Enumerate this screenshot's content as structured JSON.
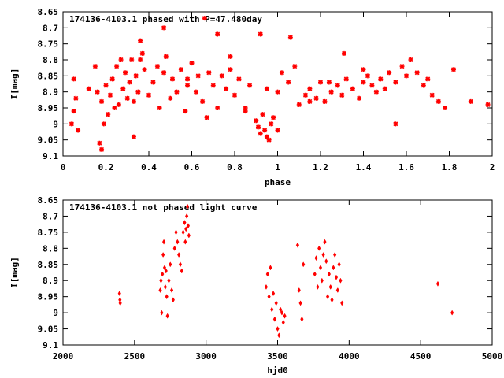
{
  "chart_data": [
    {
      "type": "scatter",
      "title": "174136-4103.1 phased with P=47.480day",
      "xlabel": "phase",
      "ylabel": "I[mag]",
      "xlim": [
        0,
        2
      ],
      "ylim": [
        9.1,
        8.65
      ],
      "y_inverted": true,
      "grid": false,
      "point_color": "#ff0000",
      "marker": "star",
      "x_ticks": [
        "0",
        "0.2",
        "0.4",
        "0.6",
        "0.8",
        "1",
        "1.2",
        "1.4",
        "1.6",
        "1.8",
        "2"
      ],
      "y_ticks": [
        "8.65",
        "8.7",
        "8.75",
        "8.8",
        "8.85",
        "8.9",
        "8.95",
        "9",
        "9.05",
        "9.1"
      ],
      "x": [
        0.04,
        0.05,
        0.06,
        0.05,
        0.07,
        0.12,
        0.15,
        0.16,
        0.17,
        0.18,
        0.19,
        0.2,
        0.21,
        0.22,
        0.23,
        0.24,
        0.25,
        0.26,
        0.27,
        0.28,
        0.29,
        0.3,
        0.31,
        0.32,
        0.33,
        0.34,
        0.35,
        0.36,
        0.37,
        0.38,
        0.4,
        0.42,
        0.44,
        0.45,
        0.47,
        0.48,
        0.5,
        0.51,
        0.53,
        0.55,
        0.57,
        0.58,
        0.6,
        0.62,
        0.63,
        0.65,
        0.67,
        0.68,
        0.7,
        0.72,
        0.74,
        0.76,
        0.78,
        0.8,
        0.82,
        0.85,
        0.87,
        0.9,
        0.91,
        0.92,
        0.93,
        0.94,
        0.95,
        0.96,
        0.97,
        0.98,
        1.0,
        1.02,
        1.05,
        1.08,
        1.1,
        1.13,
        1.15,
        1.18,
        1.2,
        1.22,
        1.25,
        1.28,
        1.3,
        1.32,
        1.35,
        1.38,
        1.4,
        1.42,
        1.44,
        1.46,
        1.48,
        1.5,
        1.52,
        1.55,
        1.58,
        1.6,
        1.62,
        1.65,
        1.68,
        1.7,
        1.72,
        1.75,
        1.78,
        1.82,
        1.9,
        1.98,
        0.36,
        0.47,
        0.66,
        0.92,
        0.72,
        1.06,
        0.78,
        1.31,
        0.18,
        0.33,
        0.58,
        0.85,
        0.95,
        1.0,
        1.15,
        1.24,
        1.4,
        1.55
      ],
      "y": [
        9.0,
        8.96,
        8.92,
        8.86,
        9.02,
        8.89,
        8.82,
        8.9,
        9.06,
        8.93,
        9.0,
        8.88,
        8.97,
        8.91,
        8.86,
        8.95,
        8.82,
        8.94,
        8.8,
        8.89,
        8.84,
        8.92,
        8.87,
        8.8,
        8.93,
        8.85,
        8.9,
        8.74,
        8.78,
        8.83,
        8.91,
        8.87,
        8.82,
        8.95,
        8.84,
        8.79,
        8.92,
        8.86,
        8.9,
        8.83,
        8.96,
        8.88,
        8.81,
        8.9,
        8.85,
        8.93,
        8.98,
        8.84,
        8.88,
        8.95,
        8.85,
        8.89,
        8.83,
        8.91,
        8.86,
        8.95,
        8.88,
        8.99,
        9.01,
        9.03,
        8.97,
        9.02,
        9.04,
        9.05,
        9.0,
        8.98,
        8.9,
        8.84,
        8.87,
        8.82,
        8.94,
        8.91,
        8.89,
        8.92,
        8.87,
        8.93,
        8.9,
        8.88,
        8.91,
        8.86,
        8.89,
        8.92,
        8.87,
        8.85,
        8.88,
        8.9,
        8.86,
        8.89,
        8.84,
        8.87,
        8.82,
        8.85,
        8.8,
        8.84,
        8.88,
        8.86,
        8.91,
        8.93,
        8.95,
        8.83,
        8.93,
        8.94,
        8.8,
        8.7,
        8.67,
        8.72,
        8.72,
        8.73,
        8.79,
        8.78,
        9.08,
        9.04,
        8.86,
        8.96,
        8.89,
        9.02,
        8.93,
        8.87,
        8.83,
        9.0
      ],
      "annotations": [],
      "legend": "none"
    },
    {
      "type": "scatter",
      "title": "174136-4103.1 not phased light curve",
      "xlabel": "hjd0",
      "ylabel": "I[mag]",
      "xlim": [
        2000,
        5000
      ],
      "ylim": [
        9.1,
        8.65
      ],
      "y_inverted": true,
      "grid": false,
      "point_color": "#ff0000",
      "marker": "diamond",
      "x_ticks": [
        "2000",
        "2500",
        "3000",
        "3500",
        "4000",
        "4500",
        "5000"
      ],
      "y_ticks": [
        "8.65",
        "8.7",
        "8.75",
        "8.8",
        "8.85",
        "8.9",
        "8.95",
        "9",
        "9.05",
        "9.1"
      ],
      "x": [
        2395,
        2398,
        2400,
        2680,
        2685,
        2690,
        2695,
        2700,
        2705,
        2710,
        2715,
        2720,
        2725,
        2730,
        2740,
        2750,
        2760,
        2770,
        2780,
        2790,
        2800,
        2810,
        2820,
        2830,
        2840,
        2850,
        2855,
        2860,
        2865,
        2870,
        2875,
        2880,
        3420,
        3430,
        3440,
        3450,
        3460,
        3470,
        3480,
        3490,
        3500,
        3510,
        3520,
        3530,
        3540,
        3550,
        3640,
        3650,
        3660,
        3670,
        3680,
        3760,
        3770,
        3780,
        3790,
        3800,
        3810,
        3820,
        3830,
        3840,
        3850,
        3860,
        3870,
        3880,
        3890,
        3900,
        3910,
        3920,
        3930,
        3940,
        3950,
        4620,
        4720
      ],
      "y": [
        8.94,
        8.96,
        8.97,
        8.93,
        8.9,
        9.0,
        8.88,
        8.82,
        8.78,
        8.86,
        8.92,
        8.87,
        8.95,
        9.01,
        8.9,
        8.85,
        8.93,
        8.96,
        8.8,
        8.75,
        8.78,
        8.82,
        8.85,
        8.87,
        8.75,
        8.72,
        8.78,
        8.74,
        8.7,
        8.67,
        8.73,
        8.76,
        8.92,
        8.88,
        8.95,
        8.86,
        8.99,
        8.94,
        9.02,
        8.97,
        9.05,
        9.07,
        8.99,
        9.0,
        9.03,
        9.01,
        8.79,
        8.93,
        8.97,
        9.02,
        8.85,
        8.88,
        8.83,
        8.92,
        8.8,
        8.86,
        8.9,
        8.82,
        8.78,
        8.84,
        8.95,
        8.88,
        8.92,
        8.96,
        8.86,
        8.82,
        8.89,
        8.93,
        8.85,
        8.9,
        8.97,
        8.91,
        9.0
      ],
      "annotations": [],
      "legend": "none"
    }
  ]
}
